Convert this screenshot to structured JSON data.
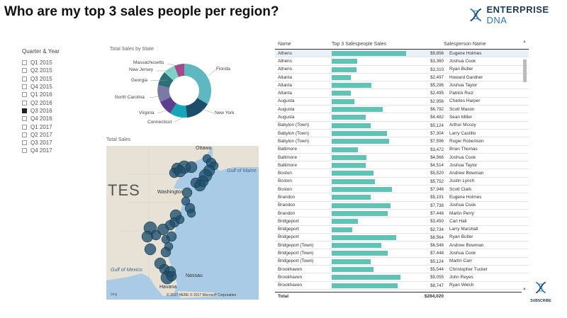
{
  "title": "Who are my top 3 sales people per region?",
  "logo": {
    "word1": "ENTERPRISE",
    "word2": "DNA"
  },
  "slicer": {
    "title": "Quarter & Year",
    "items": [
      {
        "label": "Q1 2015",
        "checked": false
      },
      {
        "label": "Q2 2015",
        "checked": false
      },
      {
        "label": "Q3 2015",
        "checked": false
      },
      {
        "label": "Q4 2015",
        "checked": false
      },
      {
        "label": "Q1 2016",
        "checked": false
      },
      {
        "label": "Q2 2016",
        "checked": false
      },
      {
        "label": "Q3 2016",
        "checked": true
      },
      {
        "label": "Q4 2016",
        "checked": false
      },
      {
        "label": "Q1 2017",
        "checked": false
      },
      {
        "label": "Q2 2017",
        "checked": false
      },
      {
        "label": "Q3 2017",
        "checked": false
      },
      {
        "label": "Q4 2017",
        "checked": false
      }
    ]
  },
  "donut": {
    "title": "Total Sales by State",
    "labels": [
      "Massachusetts",
      "New Jersey",
      "Georgia",
      "North Carolina",
      "Virginia",
      "Connecticut",
      "New York",
      "Florida"
    ]
  },
  "map": {
    "title": "Total Sales",
    "labels": {
      "ottawa": "Ottawa",
      "washington": "Washington",
      "gulf_maine": "Gulf of\nMaine",
      "nassau": "Nassau",
      "havana": "Havana",
      "gulf_mexico": "Gulf of Mexico",
      "big": "TES"
    },
    "copyright": "© 2017 HERE   © 2017 Microsoft Corporation",
    "bing": "bing"
  },
  "table": {
    "headers": [
      "Name",
      "Top 3 Salespeople Sales",
      "Salesperson Name"
    ],
    "rows": [
      {
        "name": "Athens",
        "value": "$9,856",
        "amount": 9856,
        "person": "Eugene Holmes"
      },
      {
        "name": "Athens",
        "value": "$3,360",
        "amount": 3360,
        "person": "Joshua Cook"
      },
      {
        "name": "Athens",
        "value": "$3,310",
        "amount": 3310,
        "person": "Ryan Butler"
      },
      {
        "name": "Atlanta",
        "value": "$2,497",
        "amount": 2497,
        "person": "Howard Gardner"
      },
      {
        "name": "Atlanta",
        "value": "$5,296",
        "amount": 5296,
        "person": "Joshua Taylor"
      },
      {
        "name": "Atlanta",
        "value": "$2,495",
        "amount": 2495,
        "person": "Patrick Ruiz"
      },
      {
        "name": "Augusta",
        "value": "$2,956",
        "amount": 2956,
        "person": "Charles Harper"
      },
      {
        "name": "Augusta",
        "value": "$6,792",
        "amount": 6792,
        "person": "Scott Mason"
      },
      {
        "name": "Augusta",
        "value": "$4,482",
        "amount": 4482,
        "person": "Sean Miller"
      },
      {
        "name": "Babylon (Town)",
        "value": "$5,124",
        "amount": 5124,
        "person": "Arthur Mccoy"
      },
      {
        "name": "Babylon (Town)",
        "value": "$7,304",
        "amount": 7304,
        "person": "Larry Castillo"
      },
      {
        "name": "Babylon (Town)",
        "value": "$7,596",
        "amount": 7596,
        "person": "Roger Robertson"
      },
      {
        "name": "Baltimore",
        "value": "$3,472",
        "amount": 3472,
        "person": "Brian Thomas"
      },
      {
        "name": "Baltimore",
        "value": "$4,566",
        "amount": 4566,
        "person": "Joshua Cook"
      },
      {
        "name": "Baltimore",
        "value": "$4,514",
        "amount": 4514,
        "person": "Joshua Taylor"
      },
      {
        "name": "Boston",
        "value": "$5,520",
        "amount": 5520,
        "person": "Andrew Bowman"
      },
      {
        "name": "Boston",
        "value": "$5,752",
        "amount": 5752,
        "person": "Justin Lynch"
      },
      {
        "name": "Boston",
        "value": "$7,946",
        "amount": 7946,
        "person": "Scott Clark"
      },
      {
        "name": "Brandon",
        "value": "$5,191",
        "amount": 5191,
        "person": "Eugene Holmes"
      },
      {
        "name": "Brandon",
        "value": "$7,738",
        "amount": 7738,
        "person": "Joshua Cook"
      },
      {
        "name": "Brandon",
        "value": "$7,448",
        "amount": 7448,
        "person": "Martin Perry"
      },
      {
        "name": "Bridgeport",
        "value": "$3,450",
        "amount": 3450,
        "person": "Carl Hall"
      },
      {
        "name": "Bridgeport",
        "value": "$2,734",
        "amount": 2734,
        "person": "Larry Marshall"
      },
      {
        "name": "Bridgeport",
        "value": "$8,564",
        "amount": 8564,
        "person": "Ryan Butler"
      },
      {
        "name": "Bridgeport (Town)",
        "value": "$6,546",
        "amount": 6546,
        "person": "Andrew Bowman"
      },
      {
        "name": "Bridgeport (Town)",
        "value": "$7,448",
        "amount": 7448,
        "person": "Joshua Cook"
      },
      {
        "name": "Bridgeport (Town)",
        "value": "$5,124",
        "amount": 5124,
        "person": "Martin Carr"
      },
      {
        "name": "Brookhaven",
        "value": "$5,544",
        "amount": 5544,
        "person": "Christopher Tucker"
      },
      {
        "name": "Brookhaven",
        "value": "$9,055",
        "amount": 9055,
        "person": "John Reyes"
      },
      {
        "name": "Brookhaven",
        "value": "$8,747",
        "amount": 8747,
        "person": "Ryan Welch"
      }
    ],
    "total_label": "Total",
    "total_value": "$284,020"
  },
  "subscribe": "SUBSCRIBE",
  "colors": {
    "bar": "#5fc4b6",
    "bubble": "#1f4e6a",
    "navy": "#1f3b57"
  }
}
